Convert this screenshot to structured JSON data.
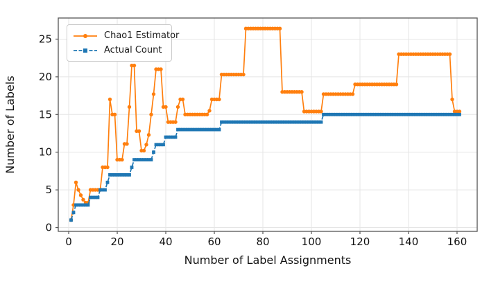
{
  "figure": {
    "kind": "matplotlib-line-chart",
    "background": "#ffffff",
    "axes_facecolor": "#ffffff",
    "grid_color": "#e5e5e5",
    "spine_color": "#555555",
    "tick_label_color": "#111111"
  },
  "chart_data": {
    "type": "line",
    "title": "",
    "xlabel": "Number of Label Assignments",
    "ylabel": "Number of Labels",
    "xlim": [
      -4.3,
      168.3
    ],
    "ylim": [
      -0.5,
      27.8
    ],
    "xticks": [
      0,
      20,
      40,
      60,
      80,
      100,
      120,
      140,
      160
    ],
    "yticks": [
      0,
      5,
      10,
      15,
      20,
      25
    ],
    "grid": true,
    "legend_position": "upper left",
    "runs_format": "each run is [x_start, x_end, y_value]; points exist at every integer x (one per label assignment)",
    "series": [
      {
        "name": "Chao1 Estimator",
        "color": "#ff7f0e",
        "line_style": "solid",
        "marker": "circle",
        "runs": [
          [
            1,
            1,
            1
          ],
          [
            2,
            2,
            3
          ],
          [
            3,
            3,
            6
          ],
          [
            4,
            4,
            5
          ],
          [
            5,
            5,
            4.3
          ],
          [
            6,
            6,
            3.7
          ],
          [
            7,
            8,
            3.3
          ],
          [
            9,
            13,
            5
          ],
          [
            14,
            16,
            8
          ],
          [
            17,
            17,
            17
          ],
          [
            18,
            19,
            15
          ],
          [
            20,
            22,
            9
          ],
          [
            23,
            24,
            11.1
          ],
          [
            25,
            25,
            16
          ],
          [
            26,
            27,
            21.5
          ],
          [
            28,
            29,
            12.8
          ],
          [
            30,
            31,
            10.2
          ],
          [
            32,
            32,
            11
          ],
          [
            33,
            33,
            12.3
          ],
          [
            34,
            34,
            15
          ],
          [
            35,
            35,
            17.7
          ],
          [
            36,
            38,
            21
          ],
          [
            39,
            40,
            16
          ],
          [
            41,
            44,
            14
          ],
          [
            45,
            45,
            16
          ],
          [
            46,
            47,
            17
          ],
          [
            48,
            57,
            15
          ],
          [
            58,
            58,
            15.5
          ],
          [
            59,
            62,
            17
          ],
          [
            63,
            72,
            20.3
          ],
          [
            73,
            87,
            26.4
          ],
          [
            88,
            96,
            18
          ],
          [
            97,
            104,
            15.4
          ],
          [
            105,
            117,
            17.7
          ],
          [
            118,
            135,
            19
          ],
          [
            136,
            157,
            23
          ],
          [
            158,
            158,
            17
          ],
          [
            159,
            161,
            15.4
          ]
        ]
      },
      {
        "name": "Actual Count",
        "color": "#1f77b4",
        "line_style": "dashed",
        "marker": "square",
        "runs": [
          [
            1,
            1,
            1
          ],
          [
            2,
            2,
            2
          ],
          [
            3,
            8,
            3
          ],
          [
            9,
            12,
            4
          ],
          [
            13,
            15,
            5
          ],
          [
            16,
            16,
            6
          ],
          [
            17,
            25,
            7
          ],
          [
            26,
            26,
            8
          ],
          [
            27,
            34,
            9
          ],
          [
            35,
            35,
            10
          ],
          [
            36,
            39,
            11
          ],
          [
            40,
            44,
            12
          ],
          [
            45,
            62,
            13
          ],
          [
            63,
            104,
            14
          ],
          [
            105,
            161,
            15
          ]
        ]
      }
    ]
  }
}
